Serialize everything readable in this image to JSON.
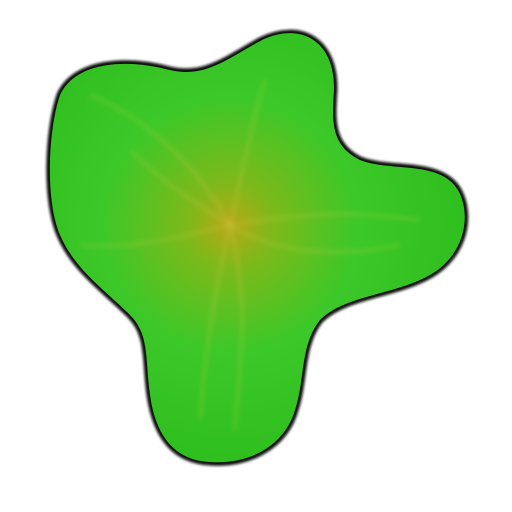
{
  "blob": {
    "icon": "green-blob-shape",
    "colors": {
      "background": "#ffffff",
      "outline": "#111111",
      "fill_edge": "#2fbf1f",
      "fill_bright": "#3cd02a",
      "fill_center": "#b8a818"
    }
  }
}
